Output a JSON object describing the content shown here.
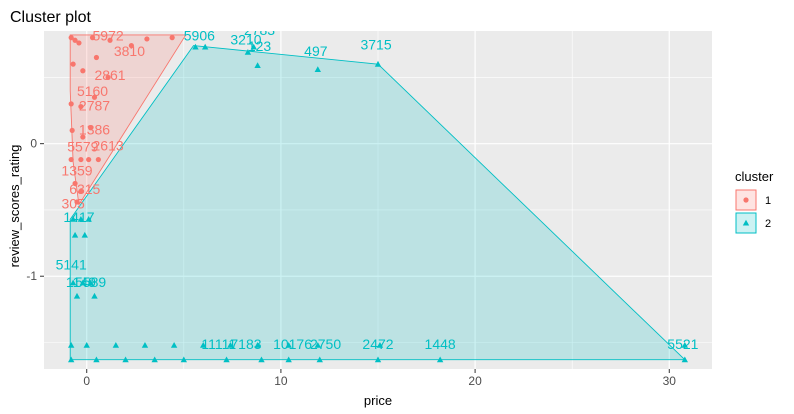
{
  "chart_data": {
    "type": "scatter",
    "title": "Cluster plot",
    "xlabel": "price",
    "ylabel": "review_scores_rating",
    "xlim": [
      -2.2,
      32.2
    ],
    "ylim": [
      -1.7,
      0.85
    ],
    "xticks": [
      0,
      10,
      20,
      30
    ],
    "yticks": [
      -1,
      0
    ],
    "grid": true,
    "legend": {
      "title": "cluster",
      "position": "right",
      "entries": [
        "1",
        "2"
      ]
    },
    "colors": {
      "cluster1": "#F8766D",
      "cluster2": "#00BFC4",
      "panel": "#EBEBEB",
      "grid": "#FFFFFF"
    },
    "series": [
      {
        "name": "1",
        "marker": "circle",
        "hull": [
          [
            -0.85,
            0.82
          ],
          [
            5.1,
            0.82
          ],
          [
            -0.4,
            -0.46
          ],
          [
            -0.7,
            -0.14
          ],
          [
            -0.85,
            0.4
          ]
        ],
        "points": [
          [
            -0.8,
            0.8
          ],
          [
            -0.6,
            0.78
          ],
          [
            -0.4,
            0.76
          ],
          [
            0.3,
            0.8
          ],
          [
            1.2,
            0.78
          ],
          [
            2.3,
            0.74
          ],
          [
            3.1,
            0.79
          ],
          [
            4.4,
            0.8
          ],
          [
            -0.7,
            0.6
          ],
          [
            -0.2,
            0.55
          ],
          [
            0.5,
            0.65
          ],
          [
            1.1,
            0.5
          ],
          [
            -0.8,
            0.3
          ],
          [
            -0.3,
            0.28
          ],
          [
            0.4,
            0.35
          ],
          [
            -0.75,
            0.1
          ],
          [
            -0.2,
            0.05
          ],
          [
            0.2,
            0.12
          ],
          [
            -0.8,
            -0.12
          ],
          [
            -0.3,
            -0.12
          ],
          [
            0.1,
            -0.12
          ],
          [
            0.6,
            -0.12
          ],
          [
            -0.6,
            -0.3
          ],
          [
            -0.3,
            -0.36
          ],
          [
            -0.5,
            -0.44
          ]
        ],
        "labels": [
          {
            "text": "5972",
            "x": 1.1,
            "y": 0.78
          },
          {
            "text": "3810",
            "x": 2.2,
            "y": 0.66
          },
          {
            "text": "2861",
            "x": 1.2,
            "y": 0.48
          },
          {
            "text": "5160",
            "x": 0.3,
            "y": 0.36
          },
          {
            "text": "2787",
            "x": 0.4,
            "y": 0.25
          },
          {
            "text": "1386",
            "x": 0.4,
            "y": 0.07
          },
          {
            "text": "2613",
            "x": 1.1,
            "y": -0.05
          },
          {
            "text": "5579",
            "x": -0.2,
            "y": -0.06
          },
          {
            "text": "1359",
            "x": -0.5,
            "y": -0.24
          },
          {
            "text": "6315",
            "x": -0.1,
            "y": -0.38
          },
          {
            "text": "305",
            "x": -0.7,
            "y": -0.49
          }
        ]
      },
      {
        "name": "2",
        "marker": "triangle",
        "hull": [
          [
            -0.85,
            -0.57
          ],
          [
            5.5,
            0.74
          ],
          [
            15.0,
            0.6
          ],
          [
            30.8,
            -1.63
          ],
          [
            -0.85,
            -1.63
          ]
        ],
        "points": [
          [
            5.6,
            0.73
          ],
          [
            6.1,
            0.73
          ],
          [
            8.3,
            0.69
          ],
          [
            8.6,
            0.73
          ],
          [
            8.8,
            0.59
          ],
          [
            11.9,
            0.56
          ],
          [
            15.0,
            0.6
          ],
          [
            -0.7,
            -0.57
          ],
          [
            -0.3,
            -0.57
          ],
          [
            0.1,
            -0.57
          ],
          [
            -0.6,
            -0.69
          ],
          [
            -0.1,
            -0.69
          ],
          [
            -0.7,
            -1.05
          ],
          [
            -0.2,
            -1.05
          ],
          [
            0.2,
            -1.05
          ],
          [
            0.4,
            -1.15
          ],
          [
            -0.5,
            -1.15
          ],
          [
            -0.8,
            -1.52
          ],
          [
            0.0,
            -1.52
          ],
          [
            1.5,
            -1.52
          ],
          [
            3.0,
            -1.52
          ],
          [
            4.5,
            -1.52
          ],
          [
            6.0,
            -1.52
          ],
          [
            7.4,
            -1.52
          ],
          [
            8.8,
            -1.52
          ],
          [
            10.4,
            -1.52
          ],
          [
            11.9,
            -1.52
          ],
          [
            15.1,
            -1.52
          ],
          [
            30.8,
            -1.52
          ],
          [
            -0.8,
            -1.63
          ],
          [
            0.5,
            -1.63
          ],
          [
            2.0,
            -1.63
          ],
          [
            3.5,
            -1.63
          ],
          [
            5.0,
            -1.63
          ],
          [
            7.2,
            -1.63
          ],
          [
            9.0,
            -1.63
          ],
          [
            10.4,
            -1.63
          ],
          [
            12.0,
            -1.63
          ],
          [
            15.0,
            -1.63
          ],
          [
            18.2,
            -1.63
          ],
          [
            30.8,
            -1.63
          ]
        ],
        "labels": [
          {
            "text": "5906",
            "x": 5.8,
            "y": 0.78
          },
          {
            "text": "2783",
            "x": 8.9,
            "y": 0.82
          },
          {
            "text": "3210",
            "x": 8.2,
            "y": 0.75
          },
          {
            "text": "123",
            "x": 8.9,
            "y": 0.7
          },
          {
            "text": "497",
            "x": 11.8,
            "y": 0.66
          },
          {
            "text": "3715",
            "x": 14.9,
            "y": 0.71
          },
          {
            "text": "1417",
            "x": -0.4,
            "y": -0.59
          },
          {
            "text": "5141",
            "x": -0.8,
            "y": -0.95
          },
          {
            "text": "1149",
            "x": -0.3,
            "y": -1.08
          },
          {
            "text": "5589",
            "x": 0.2,
            "y": -1.08
          },
          {
            "text": "11111",
            "x": 6.8,
            "y": -1.55
          },
          {
            "text": "7183",
            "x": 8.2,
            "y": -1.55
          },
          {
            "text": "10176",
            "x": 10.6,
            "y": -1.55
          },
          {
            "text": "2750",
            "x": 12.3,
            "y": -1.55
          },
          {
            "text": "2472",
            "x": 15.0,
            "y": -1.55
          },
          {
            "text": "1448",
            "x": 18.2,
            "y": -1.55
          },
          {
            "text": "5521",
            "x": 30.7,
            "y": -1.55
          }
        ]
      }
    ]
  }
}
